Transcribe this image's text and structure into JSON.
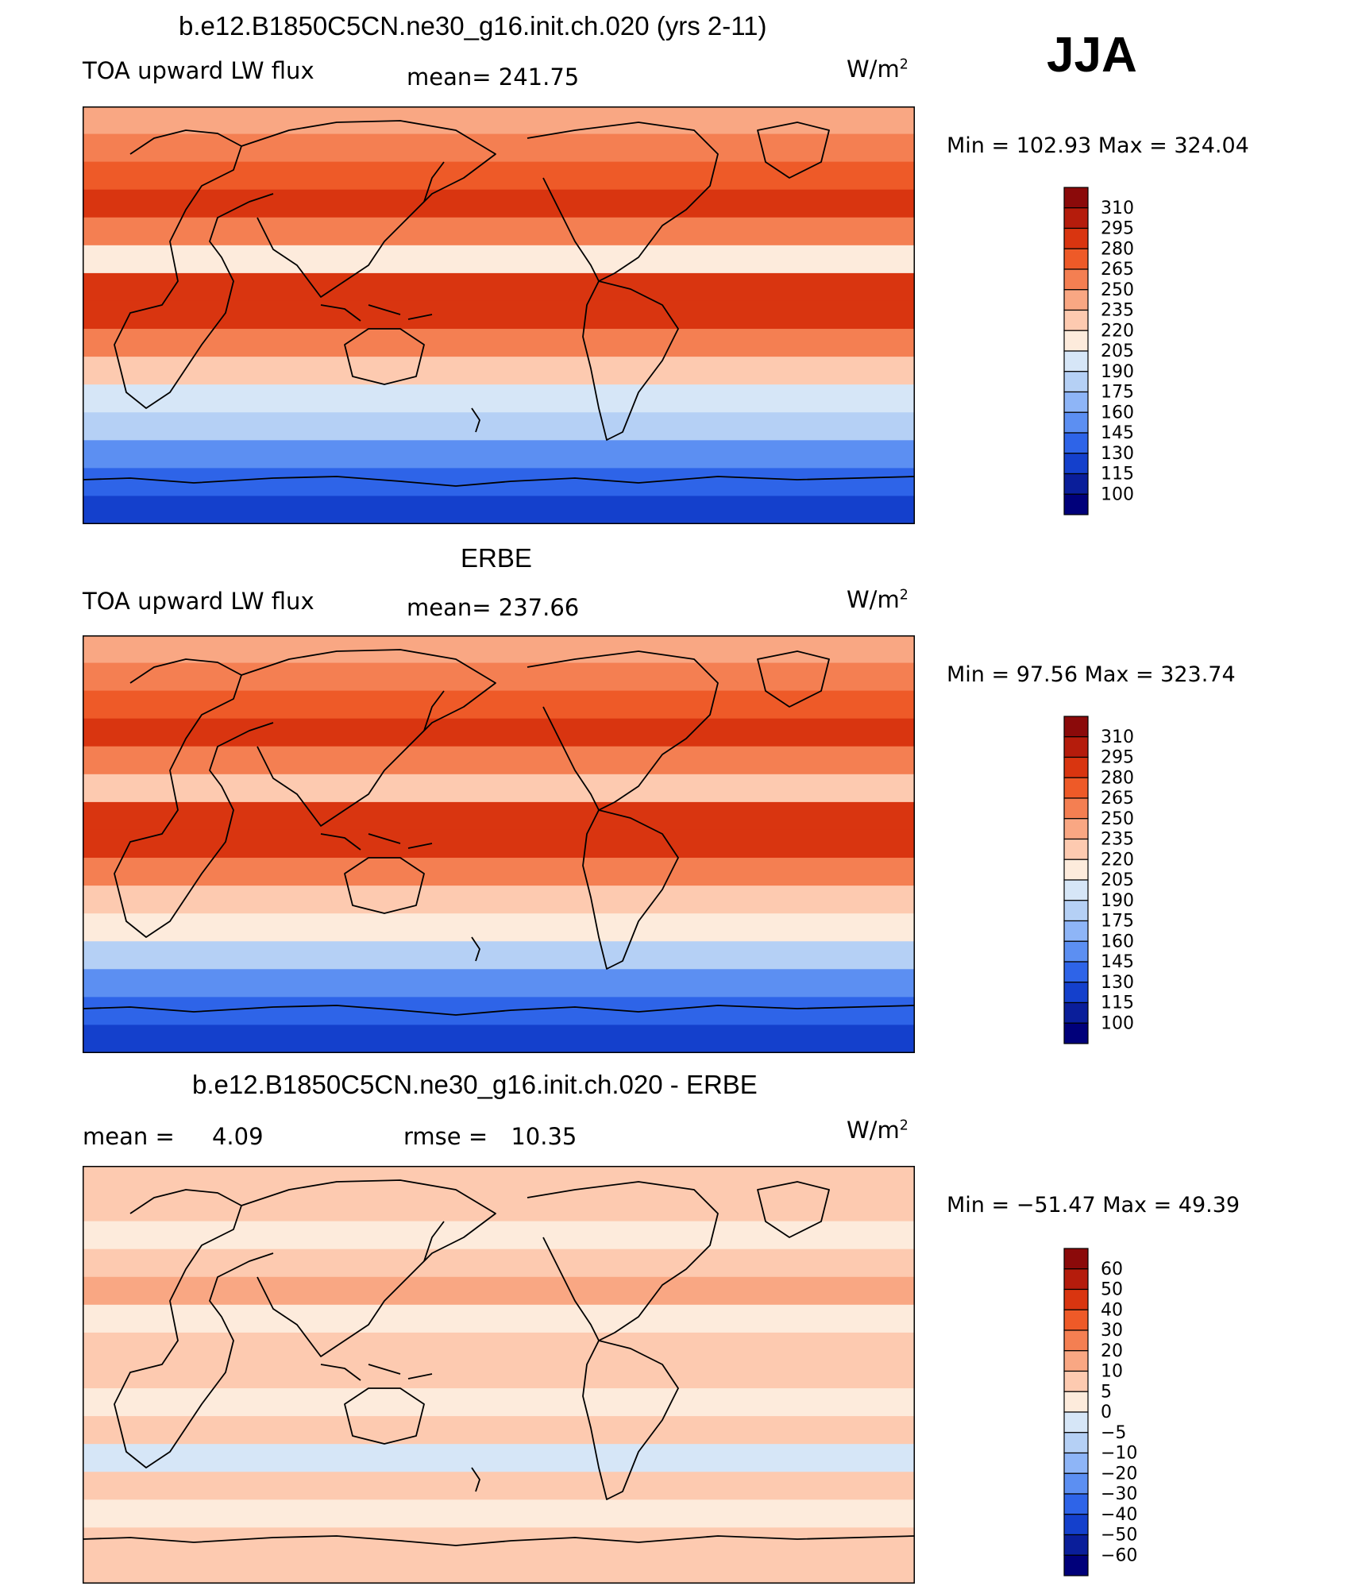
{
  "season": "JJA",
  "unit_base": "W/m",
  "unit_exp": "2",
  "panels": [
    {
      "title": "b.e12.B1850C5CN.ne30_g16.init.ch.020 (yrs 2-11)",
      "left_label": "TOA upward LW flux",
      "mid_label": "mean=",
      "mid_value": "241.75",
      "minmax": "Min = 102.93  Max = 324.04"
    },
    {
      "title": "ERBE",
      "left_label": "TOA upward LW flux",
      "mid_label": "mean=",
      "mid_value": "237.66",
      "minmax": "Min =   97.56  Max = 323.74"
    },
    {
      "title": "b.e12.B1850C5CN.ne30_g16.init.ch.020 - ERBE",
      "left_label": "mean =",
      "left_value": "4.09",
      "mid_label": "rmse =",
      "mid_value": "10.35",
      "minmax": "Min = −51.47  Max =   49.39"
    }
  ],
  "chart_data": [
    {
      "type": "heatmap",
      "title": "b.e12.B1850C5CN.ne30_g16.init.ch.020 (yrs 2-11)",
      "variable": "TOA upward LW flux",
      "units": "W/m^2",
      "mean": 241.75,
      "min": 102.93,
      "max": 324.04,
      "colorbar_levels": [
        "310",
        "295",
        "280",
        "265",
        "250",
        "235",
        "220",
        "205",
        "190",
        "175",
        "160",
        "145",
        "130",
        "115",
        "100"
      ],
      "colorbar_colors": [
        "#8b0a0a",
        "#b51c0c",
        "#d93510",
        "#ee5a28",
        "#f47f52",
        "#f9a783",
        "#fdcab0",
        "#fdebdc",
        "#d6e6f7",
        "#b5d0f5",
        "#8eb5f7",
        "#5c8ff2",
        "#2e64e8",
        "#1440cc",
        "#0a1e9a",
        "#00007a"
      ],
      "zonal_profile_top_to_bottom": [
        "235",
        "250",
        "265",
        "280",
        "250",
        "205",
        "280",
        "280",
        "250",
        "220",
        "190",
        "175",
        "145",
        "130",
        "115"
      ]
    },
    {
      "type": "heatmap",
      "title": "ERBE",
      "variable": "TOA upward LW flux",
      "units": "W/m^2",
      "mean": 237.66,
      "min": 97.56,
      "max": 323.74,
      "colorbar_levels": [
        "310",
        "295",
        "280",
        "265",
        "250",
        "235",
        "220",
        "205",
        "190",
        "175",
        "160",
        "145",
        "130",
        "115",
        "100"
      ],
      "colorbar_colors": [
        "#8b0a0a",
        "#b51c0c",
        "#d93510",
        "#ee5a28",
        "#f47f52",
        "#f9a783",
        "#fdcab0",
        "#fdebdc",
        "#d6e6f7",
        "#b5d0f5",
        "#8eb5f7",
        "#5c8ff2",
        "#2e64e8",
        "#1440cc",
        "#0a1e9a",
        "#00007a"
      ],
      "zonal_profile_top_to_bottom": [
        "235",
        "250",
        "265",
        "280",
        "250",
        "220",
        "280",
        "280",
        "250",
        "220",
        "205",
        "175",
        "145",
        "130",
        "115"
      ]
    },
    {
      "type": "heatmap",
      "title": "b.e12.B1850C5CN.ne30_g16.init.ch.020 - ERBE",
      "units": "W/m^2",
      "mean": 4.09,
      "rmse": 10.35,
      "min": -51.47,
      "max": 49.39,
      "colorbar_levels": [
        "60",
        "50",
        "40",
        "30",
        "20",
        "10",
        "5",
        "0",
        "−5",
        "−10",
        "−20",
        "−30",
        "−40",
        "−50",
        "−60"
      ],
      "colorbar_colors": [
        "#8b0a0a",
        "#b51c0c",
        "#d93510",
        "#ee5a28",
        "#f47f52",
        "#f9a783",
        "#fdcab0",
        "#fdebdc",
        "#d6e6f7",
        "#b5d0f5",
        "#8eb5f7",
        "#5c8ff2",
        "#2e64e8",
        "#1440cc",
        "#0a1e9a",
        "#00007a"
      ],
      "zonal_profile_top_to_bottom": [
        "5",
        "5",
        "0",
        "5",
        "10",
        "0",
        "5",
        "5",
        "0",
        "5",
        "−5",
        "5",
        "0",
        "5",
        "5"
      ]
    }
  ]
}
